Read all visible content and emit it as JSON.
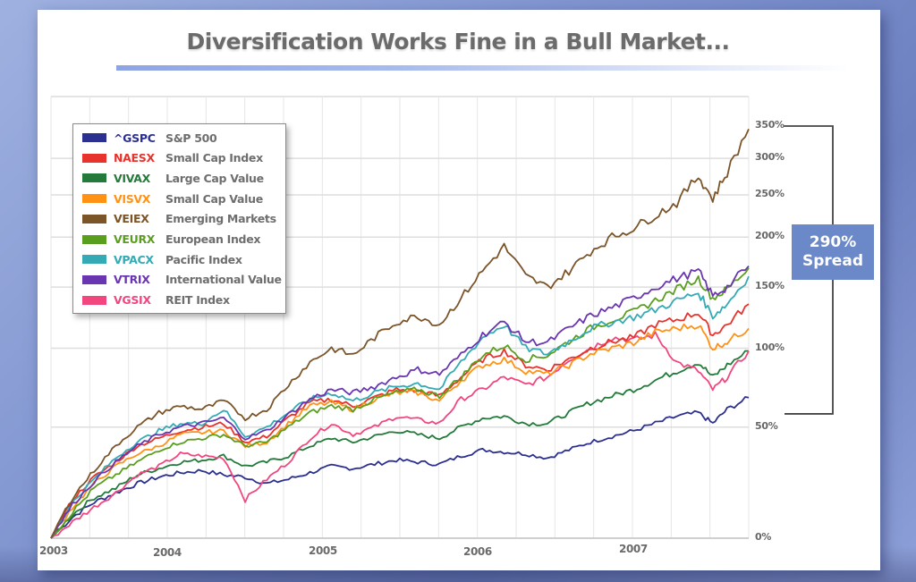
{
  "chart_data": {
    "type": "line",
    "title": "Diversification Works Fine in a Bull Market...",
    "xlabel": "",
    "ylabel": "",
    "y_scale": "log(1+return)",
    "ylim": [
      0,
      350
    ],
    "y_ticks": [
      "0%",
      "50%",
      "100%",
      "150%",
      "200%",
      "250%",
      "300%",
      "350%"
    ],
    "y_tick_values": [
      0,
      50,
      100,
      150,
      200,
      250,
      300,
      350
    ],
    "x_ticks": [
      "2003",
      "2004",
      "2005",
      "2006",
      "2007"
    ],
    "x_tick_values": [
      2003.0,
      2003.6,
      2004.8,
      2006.0,
      2007.0
    ],
    "xlim": [
      2003.0,
      2007.85
    ],
    "grid": true,
    "legend_position": "top-left",
    "x": [
      2003.0,
      2003.15,
      2003.3,
      2003.45,
      2003.6,
      2003.75,
      2003.9,
      2004.05,
      2004.2,
      2004.35,
      2004.5,
      2004.65,
      2004.8,
      2004.95,
      2005.1,
      2005.25,
      2005.4,
      2005.55,
      2005.7,
      2005.85,
      2006.0,
      2006.15,
      2006.3,
      2006.45,
      2006.6,
      2006.75,
      2006.9,
      2007.05,
      2007.2,
      2007.35,
      2007.5,
      2007.6,
      2007.7,
      2007.85
    ],
    "series": [
      {
        "ticker": "^GSPC",
        "name": "S&P 500",
        "color": "#2b2f8f",
        "values": [
          0,
          8,
          14,
          18,
          22,
          25,
          27,
          28,
          26,
          25,
          22,
          24,
          27,
          30,
          29,
          31,
          33,
          32,
          31,
          35,
          38,
          37,
          36,
          34,
          38,
          42,
          45,
          48,
          52,
          56,
          58,
          52,
          60,
          67
        ]
      },
      {
        "ticker": "NAESX",
        "name": "Small Cap Index",
        "color": "#e8322c",
        "values": [
          0,
          15,
          25,
          32,
          40,
          44,
          48,
          50,
          52,
          42,
          45,
          55,
          64,
          66,
          62,
          67,
          72,
          71,
          68,
          80,
          92,
          98,
          88,
          85,
          92,
          100,
          105,
          108,
          118,
          122,
          128,
          110,
          118,
          135
        ]
      },
      {
        "ticker": "VIVAX",
        "name": "Large Cap Value",
        "color": "#237a3a",
        "values": [
          0,
          9,
          16,
          20,
          26,
          29,
          32,
          33,
          35,
          30,
          32,
          35,
          40,
          44,
          42,
          45,
          48,
          46,
          44,
          50,
          55,
          56,
          52,
          52,
          58,
          64,
          68,
          72,
          78,
          84,
          90,
          80,
          88,
          98
        ]
      },
      {
        "ticker": "VISVX",
        "name": "Small Cap Value",
        "color": "#ff9214",
        "values": [
          0,
          12,
          22,
          30,
          36,
          40,
          46,
          47,
          48,
          40,
          42,
          52,
          62,
          64,
          60,
          66,
          70,
          70,
          65,
          78,
          88,
          92,
          84,
          82,
          88,
          96,
          100,
          104,
          112,
          115,
          118,
          100,
          105,
          115
        ]
      },
      {
        "ticker": "VEIEX",
        "name": "Emerging Markets",
        "color": "#7b5428",
        "values": [
          0,
          16,
          28,
          40,
          50,
          58,
          62,
          60,
          65,
          55,
          60,
          75,
          90,
          100,
          95,
          108,
          120,
          125,
          118,
          140,
          165,
          190,
          160,
          150,
          165,
          185,
          200,
          210,
          225,
          240,
          275,
          245,
          280,
          345
        ]
      },
      {
        "ticker": "VEURX",
        "name": "European Index",
        "color": "#5a9e1e",
        "values": [
          0,
          10,
          20,
          26,
          32,
          38,
          42,
          44,
          46,
          40,
          42,
          50,
          58,
          62,
          60,
          66,
          70,
          72,
          68,
          80,
          95,
          102,
          92,
          95,
          105,
          115,
          122,
          128,
          138,
          148,
          158,
          140,
          148,
          168
        ]
      },
      {
        "ticker": "VPACX",
        "name": "Pacific Index",
        "color": "#34aab5",
        "values": [
          0,
          14,
          24,
          34,
          42,
          48,
          52,
          52,
          60,
          45,
          50,
          58,
          66,
          70,
          65,
          70,
          74,
          76,
          72,
          90,
          108,
          118,
          100,
          96,
          105,
          115,
          120,
          124,
          130,
          138,
          145,
          125,
          135,
          160
        ]
      },
      {
        "ticker": "VTRIX",
        "name": "International Value",
        "color": "#6a35b0",
        "values": [
          0,
          13,
          23,
          32,
          40,
          46,
          50,
          52,
          55,
          44,
          48,
          57,
          66,
          72,
          70,
          74,
          80,
          85,
          82,
          95,
          110,
          120,
          105,
          104,
          115,
          125,
          132,
          140,
          150,
          158,
          165,
          142,
          150,
          170
        ]
      },
      {
        "ticker": "VGSIX",
        "name": "REIT Index",
        "color": "#f2467e",
        "values": [
          0,
          6,
          12,
          18,
          26,
          30,
          36,
          35,
          34,
          15,
          24,
          32,
          44,
          52,
          46,
          50,
          56,
          54,
          52,
          66,
          72,
          80,
          75,
          80,
          92,
          100,
          108,
          106,
          110,
          90,
          84,
          72,
          80,
          98
        ]
      }
    ],
    "annotation": {
      "spread_label_line1": "290%",
      "spread_label_line2": "Spread",
      "spread_from": 60,
      "spread_to": 350
    }
  },
  "legend": [
    {
      "ticker": "^GSPC",
      "name": "S&P 500",
      "color": "#2b2f8f"
    },
    {
      "ticker": "NAESX",
      "name": "Small Cap Index",
      "color": "#e8322c"
    },
    {
      "ticker": "VIVAX",
      "name": "Large Cap Value",
      "color": "#237a3a"
    },
    {
      "ticker": "VISVX",
      "name": "Small Cap Value",
      "color": "#ff9214"
    },
    {
      "ticker": "VEIEX",
      "name": "Emerging Markets",
      "color": "#7b5428"
    },
    {
      "ticker": "VEURX",
      "name": "European Index",
      "color": "#5a9e1e"
    },
    {
      "ticker": "VPACX",
      "name": "Pacific Index",
      "color": "#34aab5"
    },
    {
      "ticker": "VTRIX",
      "name": "International Value",
      "color": "#6a35b0"
    },
    {
      "ticker": "VGSIX",
      "name": "REIT Index",
      "color": "#f2467e"
    }
  ]
}
